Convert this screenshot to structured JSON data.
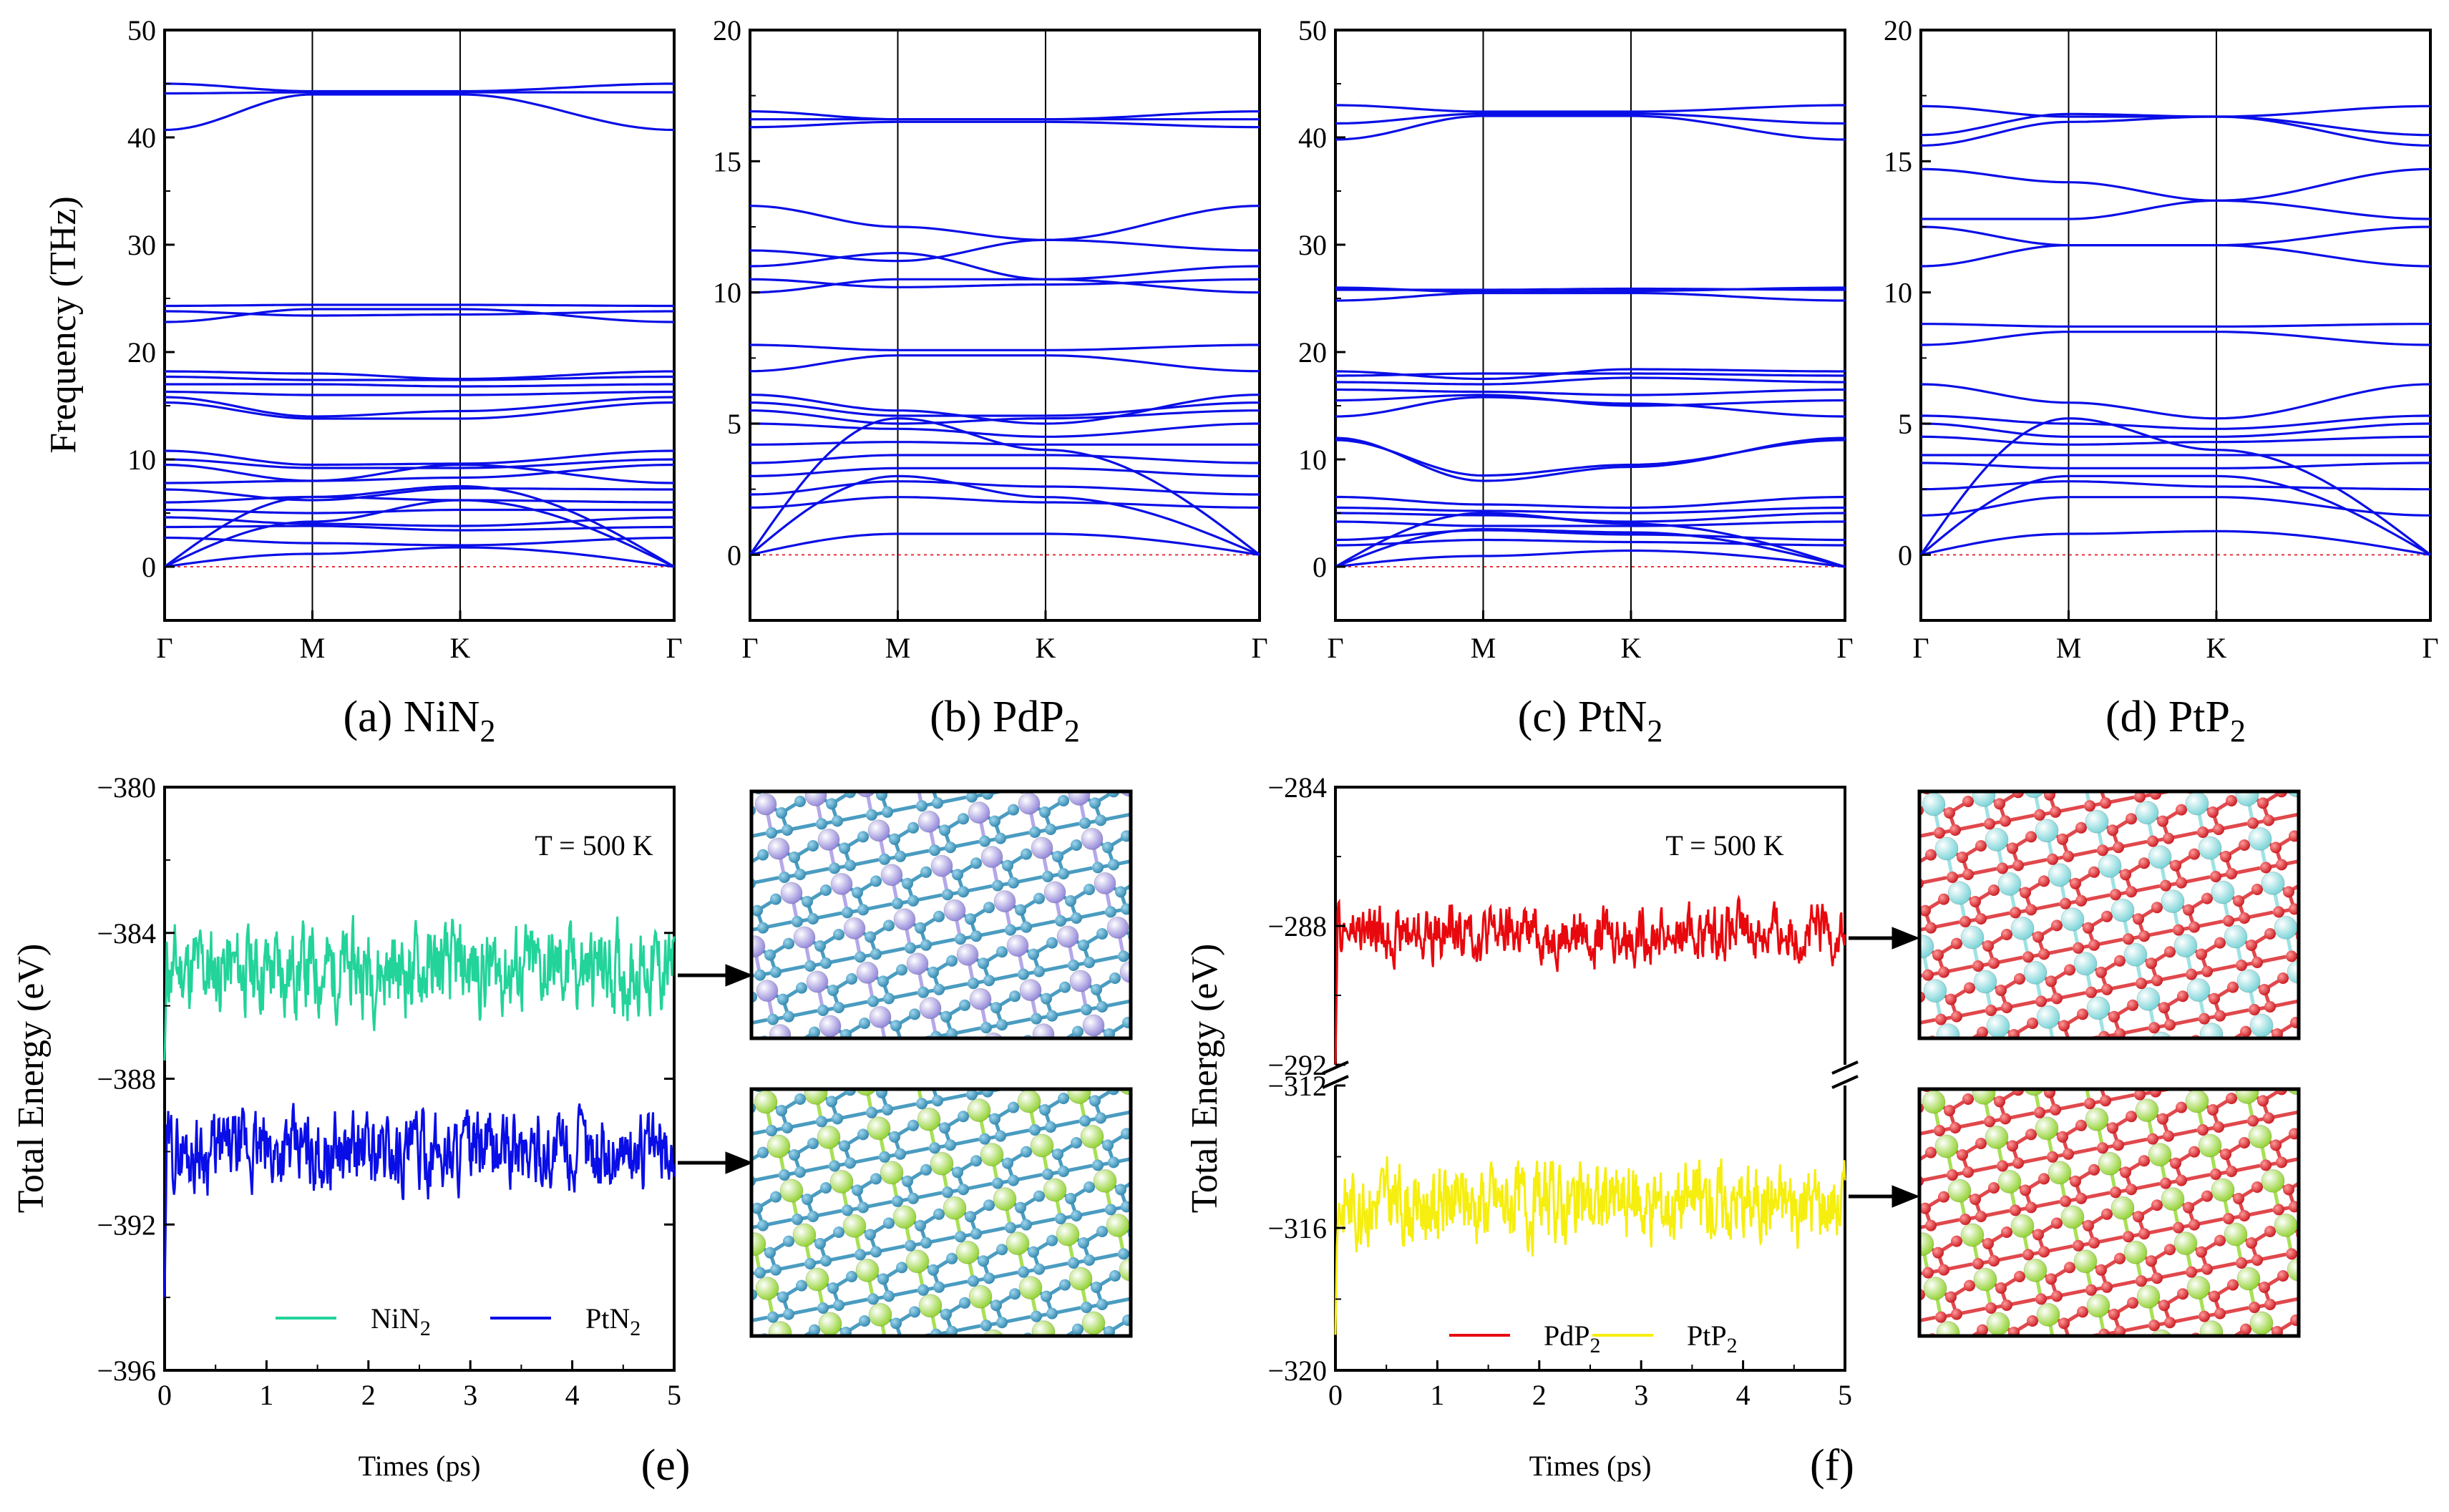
{
  "chart_data": [
    {
      "id": "a",
      "type": "line",
      "subtitle": "phonon dispersion",
      "caption": "(a) NiN",
      "caption_sub": "2",
      "ylabel": "Frequency (THz)",
      "ylim": [
        -5,
        50
      ],
      "yticks": [
        "0",
        "10",
        "20",
        "30",
        "40",
        "50"
      ],
      "kpoints": [
        "Γ",
        "M",
        "K",
        "Γ"
      ],
      "series_color": "#0a0ee6",
      "zero_line_color": "#e8323a",
      "bands": [
        [
          40.7,
          44.0,
          44.0,
          40.7
        ],
        [
          44.1,
          44.2,
          44.2,
          44.2
        ],
        [
          45.0,
          44.3,
          44.3,
          45.0
        ],
        [
          22.8,
          24.0,
          24.0,
          22.8
        ],
        [
          23.8,
          23.4,
          23.5,
          23.8
        ],
        [
          24.3,
          24.4,
          24.4,
          24.3
        ],
        [
          15.3,
          13.8,
          13.8,
          15.3
        ],
        [
          15.8,
          14.0,
          14.5,
          15.8
        ],
        [
          16.3,
          16.0,
          16.0,
          16.3
        ],
        [
          17.0,
          17.0,
          16.8,
          17.0
        ],
        [
          17.7,
          17.4,
          17.4,
          17.7
        ],
        [
          18.2,
          18.0,
          17.5,
          18.2
        ],
        [
          9.5,
          8.0,
          8.3,
          9.5
        ],
        [
          10.0,
          9.2,
          9.2,
          10.0
        ],
        [
          10.8,
          9.5,
          9.6,
          10.8
        ],
        [
          7.8,
          8.0,
          9.5,
          7.8
        ],
        [
          7.2,
          6.2,
          7.3,
          7.2
        ],
        [
          6.0,
          6.5,
          6.2,
          6.0
        ],
        [
          5.3,
          5.0,
          5.3,
          5.3
        ],
        [
          4.6,
          4.0,
          3.8,
          4.6
        ],
        [
          3.7,
          3.8,
          3.4,
          3.7
        ],
        [
          2.7,
          2.2,
          2.0,
          2.7
        ],
        [
          0,
          6.5,
          7.5,
          0
        ],
        [
          0,
          4.2,
          6.2,
          0
        ],
        [
          0,
          1.2,
          1.8,
          0
        ]
      ]
    },
    {
      "id": "b",
      "type": "line",
      "subtitle": "phonon dispersion",
      "caption": "(b) PdP",
      "caption_sub": "2",
      "ylabel": "",
      "ylim": [
        -2.5,
        20
      ],
      "yticks": [
        "0",
        "5",
        "10",
        "15",
        "20"
      ],
      "kpoints": [
        "Γ",
        "M",
        "K",
        "Γ"
      ],
      "series_color": "#0a0ee6",
      "zero_line_color": "#e8323a",
      "bands": [
        [
          16.3,
          16.5,
          16.5,
          16.3
        ],
        [
          16.6,
          16.6,
          16.6,
          16.6
        ],
        [
          16.9,
          16.6,
          16.6,
          16.9
        ],
        [
          13.3,
          12.5,
          12.0,
          13.3
        ],
        [
          11.6,
          11.2,
          12.0,
          11.6
        ],
        [
          11.0,
          11.5,
          10.5,
          11.0
        ],
        [
          10.5,
          10.2,
          10.3,
          10.5
        ],
        [
          10.0,
          10.5,
          10.5,
          10.0
        ],
        [
          8.0,
          7.8,
          7.8,
          8.0
        ],
        [
          7.0,
          7.6,
          7.6,
          7.0
        ],
        [
          6.1,
          5.5,
          5.0,
          6.1
        ],
        [
          5.8,
          5.3,
          5.3,
          5.8
        ],
        [
          5.5,
          5.0,
          5.2,
          5.5
        ],
        [
          5.0,
          4.8,
          4.5,
          5.0
        ],
        [
          4.2,
          4.3,
          4.2,
          4.2
        ],
        [
          3.5,
          3.8,
          3.8,
          3.5
        ],
        [
          3.0,
          3.3,
          3.3,
          3.0
        ],
        [
          2.3,
          2.8,
          2.6,
          2.3
        ],
        [
          1.8,
          2.2,
          2.0,
          1.8
        ],
        [
          0,
          5.2,
          4.0,
          0
        ],
        [
          0,
          3.0,
          2.2,
          0
        ],
        [
          0,
          0.8,
          0.8,
          0
        ]
      ]
    },
    {
      "id": "c",
      "type": "line",
      "subtitle": "phonon dispersion",
      "caption": "(c) PtN",
      "caption_sub": "2",
      "ylabel": "",
      "ylim": [
        -5,
        50
      ],
      "yticks": [
        "0",
        "10",
        "20",
        "30",
        "40",
        "50"
      ],
      "kpoints": [
        "Γ",
        "M",
        "K",
        "Γ"
      ],
      "series_color": "#0a0ee6",
      "zero_line_color": "#e8323a",
      "bands": [
        [
          39.8,
          42.0,
          42.0,
          39.8
        ],
        [
          41.3,
          42.2,
          42.2,
          41.3
        ],
        [
          43.0,
          42.4,
          42.4,
          43.0
        ],
        [
          24.8,
          25.5,
          25.5,
          24.8
        ],
        [
          25.8,
          25.8,
          25.9,
          25.8
        ],
        [
          26.0,
          25.6,
          25.7,
          26.0
        ],
        [
          14.0,
          15.8,
          15.2,
          14.0
        ],
        [
          15.5,
          16.0,
          15.0,
          15.5
        ],
        [
          16.5,
          16.3,
          16.0,
          16.5
        ],
        [
          17.2,
          17.0,
          17.6,
          17.2
        ],
        [
          17.8,
          18.0,
          18.0,
          17.8
        ],
        [
          18.2,
          17.5,
          18.4,
          18.2
        ],
        [
          11.8,
          8.5,
          9.5,
          11.8
        ],
        [
          12.0,
          8.0,
          9.3,
          12.0
        ],
        [
          6.5,
          5.8,
          5.5,
          6.5
        ],
        [
          5.5,
          5.2,
          5.0,
          5.5
        ],
        [
          5.0,
          4.8,
          4.2,
          5.0
        ],
        [
          4.2,
          3.8,
          3.8,
          4.2
        ],
        [
          2.5,
          3.4,
          3.0,
          2.5
        ],
        [
          2.0,
          2.5,
          2.3,
          2.0
        ],
        [
          0,
          5.0,
          4.0,
          0
        ],
        [
          0,
          3.5,
          3.2,
          0
        ],
        [
          0,
          1.0,
          1.5,
          0
        ]
      ]
    },
    {
      "id": "d",
      "type": "line",
      "subtitle": "phonon dispersion",
      "caption": "(d) PtP",
      "caption_sub": "2",
      "ylabel": "",
      "ylim": [
        -2.5,
        20
      ],
      "yticks": [
        "0",
        "5",
        "10",
        "15",
        "20"
      ],
      "kpoints": [
        "Γ",
        "M",
        "K",
        "Γ"
      ],
      "series_color": "#0a0ee6",
      "zero_line_color": "#e8323a",
      "bands": [
        [
          15.6,
          16.5,
          16.7,
          15.6
        ],
        [
          16.0,
          16.8,
          16.7,
          16.0
        ],
        [
          17.1,
          16.7,
          16.7,
          17.1
        ],
        [
          14.7,
          14.2,
          13.5,
          14.7
        ],
        [
          12.8,
          12.8,
          13.5,
          12.8
        ],
        [
          12.5,
          11.8,
          11.8,
          12.5
        ],
        [
          11.0,
          11.8,
          11.8,
          11.0
        ],
        [
          8.0,
          8.5,
          8.5,
          8.0
        ],
        [
          8.8,
          8.7,
          8.7,
          8.8
        ],
        [
          6.5,
          5.8,
          5.2,
          6.5
        ],
        [
          5.3,
          5.0,
          4.8,
          5.3
        ],
        [
          5.0,
          4.5,
          4.5,
          5.0
        ],
        [
          4.5,
          4.2,
          4.3,
          4.5
        ],
        [
          3.8,
          3.8,
          3.8,
          3.8
        ],
        [
          3.5,
          3.3,
          3.3,
          3.5
        ],
        [
          2.5,
          2.8,
          2.6,
          2.5
        ],
        [
          1.5,
          2.2,
          2.2,
          1.5
        ],
        [
          0,
          5.2,
          4.0,
          0
        ],
        [
          0,
          3.0,
          3.0,
          0
        ],
        [
          0,
          0.8,
          0.9,
          0
        ]
      ]
    },
    {
      "id": "e",
      "type": "line",
      "subtitle": "AIMD energy fluctuation",
      "tag": "(e)",
      "annotation": "T = 500 K",
      "xlabel": "Times (ps)",
      "ylabel": "Total Energy (eV)",
      "xlim": [
        0,
        5
      ],
      "ylim": [
        -396,
        -380
      ],
      "xticks": [
        "0",
        "1",
        "2",
        "3",
        "4",
        "5"
      ],
      "yticks": [
        "−396",
        "−392",
        "−388",
        "−384",
        "−380"
      ],
      "series": [
        {
          "name": "NiN",
          "name_sub": "2",
          "color": "#22d39a",
          "mean": -385.0,
          "amp": 0.85,
          "start": -387.5,
          "seed": 11
        },
        {
          "name": "PtN",
          "name_sub": "2",
          "color": "#0a0ee6",
          "mean": -390.0,
          "amp": 0.75,
          "start": -394.0,
          "seed": 29
        }
      ]
    },
    {
      "id": "f",
      "type": "line",
      "subtitle": "AIMD energy fluctuation (broken axis)",
      "tag": "(f)",
      "annotation": "T = 500 K",
      "xlabel": "Times (ps)",
      "ylabel": "Total Energy (eV)",
      "xlim": [
        0,
        5
      ],
      "ylim_upper": [
        -292,
        -284
      ],
      "ylim_lower": [
        -320,
        -312
      ],
      "xticks": [
        "0",
        "1",
        "2",
        "3",
        "4",
        "5"
      ],
      "yticks_upper": [
        "−292",
        "−288",
        "−284"
      ],
      "yticks_lower": [
        "−320",
        "−316",
        "−312"
      ],
      "series": [
        {
          "name": "PdP",
          "name_sub": "2",
          "color": "#e8090e",
          "mean": -288.2,
          "amp": 0.55,
          "start": -292.0,
          "seed": 47,
          "segment": "upper"
        },
        {
          "name": "PtP",
          "name_sub": "2",
          "color": "#f6ee0e",
          "mean": -315.3,
          "amp": 0.8,
          "start": -319.0,
          "seed": 83,
          "segment": "lower"
        }
      ]
    }
  ],
  "structures": [
    {
      "id": "nin2",
      "metal_color": "#8f83d8",
      "nonmetal_color": "#2f86ad"
    },
    {
      "id": "ptn2",
      "metal_color": "#8fd12b",
      "nonmetal_color": "#2f86ad"
    },
    {
      "id": "pdp2",
      "metal_color": "#74d2d6",
      "nonmetal_color": "#d9262c"
    },
    {
      "id": "ptp2",
      "metal_color": "#8fd12b",
      "nonmetal_color": "#d9262c"
    }
  ]
}
